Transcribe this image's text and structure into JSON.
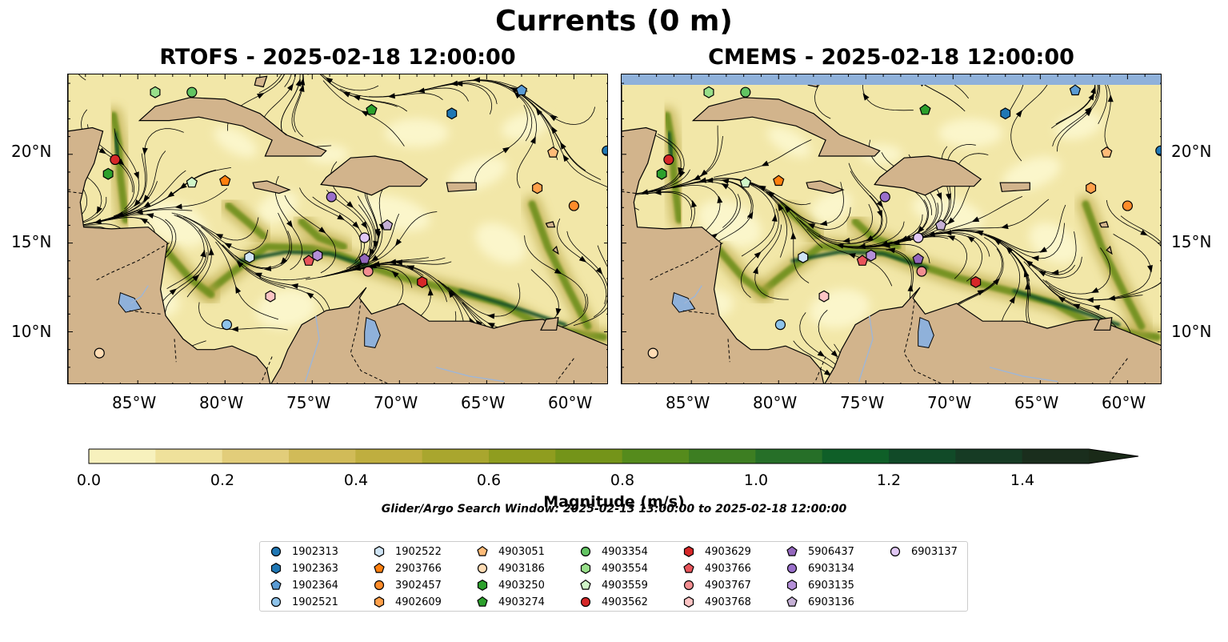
{
  "title": "Currents (0 m)",
  "panels": [
    {
      "title": "RTOFS - 2025-02-18 12:00:00"
    },
    {
      "title": "CMEMS - 2025-02-18 12:00:00"
    }
  ],
  "map_extent": {
    "lon": [
      -89,
      -58
    ],
    "lat": [
      7,
      24.5
    ]
  },
  "lat_ticks": [
    "20°N",
    "15°N",
    "10°N"
  ],
  "lon_ticks": [
    "85°W",
    "80°W",
    "75°W",
    "70°W",
    "65°W",
    "60°W"
  ],
  "colorbar": {
    "label": "Magnitude (m/s)",
    "ticks": [
      "0.0",
      "0.2",
      "0.4",
      "0.6",
      "0.8",
      "1.0",
      "1.2",
      "1.4"
    ],
    "range": [
      0,
      1.5
    ],
    "colors": [
      "#f7f1bd",
      "#efe19b",
      "#e2cd7a",
      "#d1bb58",
      "#bfae3f",
      "#a9a62e",
      "#8f9d1f",
      "#749419",
      "#558b1c",
      "#3d7e22",
      "#266f28",
      "#0f5f28",
      "#114a28",
      "#163b24",
      "#1a2e1d"
    ]
  },
  "search_window": "Glider/Argo Search Window: 2025-02-13 13:00:00 to 2025-02-18 12:00:00",
  "legend": [
    {
      "id": "1902313",
      "color": "#1f77b4",
      "shape": "circle"
    },
    {
      "id": "1902363",
      "color": "#1f77b4",
      "shape": "hexagon"
    },
    {
      "id": "1902364",
      "color": "#5a9bd4",
      "shape": "pentagon"
    },
    {
      "id": "1902521",
      "color": "#8ec3ea",
      "shape": "circle"
    },
    {
      "id": "1902522",
      "color": "#cfe4f5",
      "shape": "hexagon"
    },
    {
      "id": "2903766",
      "color": "#ff7f0e",
      "shape": "pentagon"
    },
    {
      "id": "3902457",
      "color": "#ff8c2a",
      "shape": "circle"
    },
    {
      "id": "4902609",
      "color": "#ffa04a",
      "shape": "hexagon"
    },
    {
      "id": "4903051",
      "color": "#ffbb78",
      "shape": "pentagon"
    },
    {
      "id": "4903186",
      "color": "#ffdcb4",
      "shape": "circle"
    },
    {
      "id": "4903250",
      "color": "#2ca02c",
      "shape": "hexagon"
    },
    {
      "id": "4903274",
      "color": "#2ca02c",
      "shape": "pentagon"
    },
    {
      "id": "4903354",
      "color": "#62c462",
      "shape": "circle"
    },
    {
      "id": "4903554",
      "color": "#98df8a",
      "shape": "hexagon"
    },
    {
      "id": "4903559",
      "color": "#d0f5c8",
      "shape": "pentagon"
    },
    {
      "id": "4903562",
      "color": "#d62728",
      "shape": "circle"
    },
    {
      "id": "4903629",
      "color": "#d62728",
      "shape": "hexagon"
    },
    {
      "id": "4903766",
      "color": "#e8545a",
      "shape": "pentagon"
    },
    {
      "id": "4903767",
      "color": "#f28e91",
      "shape": "circle"
    },
    {
      "id": "4903768",
      "color": "#fdc4c4",
      "shape": "hexagon"
    },
    {
      "id": "5906437",
      "color": "#9467bd",
      "shape": "pentagon"
    },
    {
      "id": "6903134",
      "color": "#9a6fcb",
      "shape": "circle"
    },
    {
      "id": "6903135",
      "color": "#b48fd8",
      "shape": "hexagon"
    },
    {
      "id": "6903136",
      "color": "#c5b0d5",
      "shape": "pentagon"
    },
    {
      "id": "6903137",
      "color": "#e1c8f5",
      "shape": "circle"
    }
  ],
  "platform_positions": [
    {
      "id": "4903562",
      "lon": -86.3,
      "lat": 19.7
    },
    {
      "id": "4903250",
      "lon": -86.7,
      "lat": 18.9
    },
    {
      "id": "4903354",
      "lon": -81.9,
      "lat": 23.5
    },
    {
      "id": "4903554",
      "lon": -84.0,
      "lat": 23.5
    },
    {
      "id": "4903559",
      "lon": -81.9,
      "lat": 18.4
    },
    {
      "id": "2903766",
      "lon": -80.0,
      "lat": 18.5
    },
    {
      "id": "4903274",
      "lon": -71.6,
      "lat": 22.5
    },
    {
      "id": "1902363",
      "lon": -67.0,
      "lat": 22.3
    },
    {
      "id": "1902364",
      "lon": -63.0,
      "lat": 23.6
    },
    {
      "id": "1902313",
      "lon": -58.1,
      "lat": 20.2
    },
    {
      "id": "4903051",
      "lon": -61.2,
      "lat": 20.1
    },
    {
      "id": "4902609",
      "lon": -62.1,
      "lat": 18.1
    },
    {
      "id": "3902457",
      "lon": -60.0,
      "lat": 17.1
    },
    {
      "id": "6903134",
      "lon": -73.9,
      "lat": 17.6
    },
    {
      "id": "6903136",
      "lon": -70.7,
      "lat": 16.0
    },
    {
      "id": "6903137",
      "lon": -72.0,
      "lat": 15.3
    },
    {
      "id": "1902522",
      "lon": -78.6,
      "lat": 14.2
    },
    {
      "id": "4903766",
      "lon": -75.2,
      "lat": 14.0
    },
    {
      "id": "6903135",
      "lon": -74.7,
      "lat": 14.3
    },
    {
      "id": "5906437",
      "lon": -72.0,
      "lat": 14.1
    },
    {
      "id": "4903767",
      "lon": -71.8,
      "lat": 13.4
    },
    {
      "id": "4903629",
      "lon": -68.7,
      "lat": 12.8
    },
    {
      "id": "4903768",
      "lon": -77.4,
      "lat": 12.0
    },
    {
      "id": "1902521",
      "lon": -79.9,
      "lat": 10.4
    },
    {
      "id": "4903186",
      "lon": -87.2,
      "lat": 8.8
    }
  ]
}
